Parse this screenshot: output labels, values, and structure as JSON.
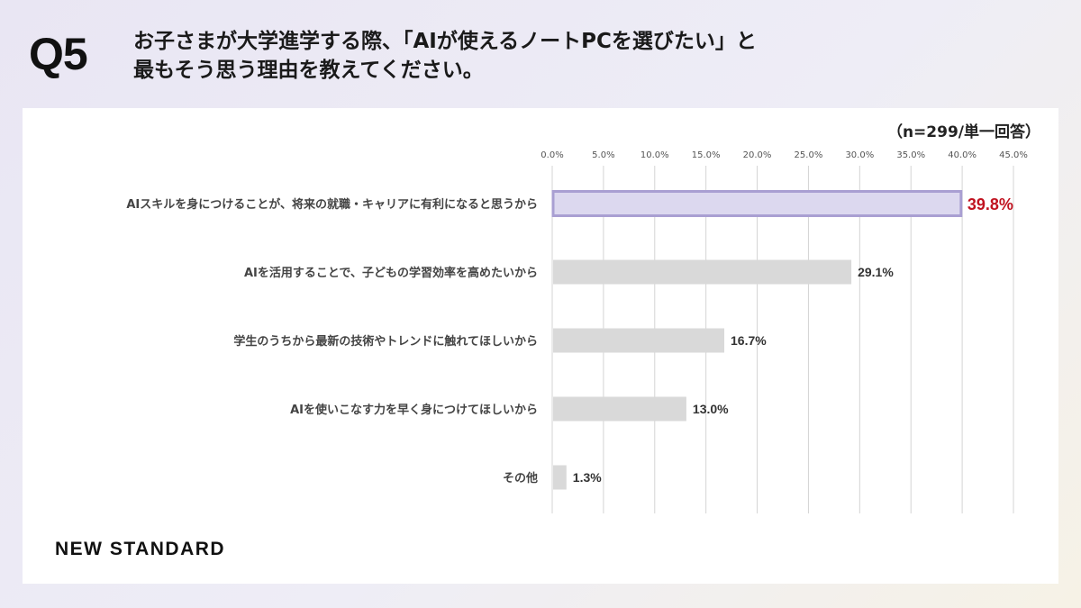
{
  "question": {
    "number": "Q5",
    "title_line1": "お子さまが大学進学する際、「AIが使えるノートPCを選びたい」と",
    "title_line2": "最もそう思う理由を教えてください。"
  },
  "sample_note": "（n=299/単一回答）",
  "brand": "NEW STANDARD",
  "colors": {
    "highlight_fill": "#dcd8ef",
    "highlight_stroke": "#a99fd2",
    "bar_fill": "#d9d9d9",
    "highlight_label": "#c0121f",
    "grid": "#d4d4d4"
  },
  "chart_data": {
    "type": "bar",
    "orientation": "horizontal",
    "categories": [
      "AIスキルを身につけることが、将来の就職・キャリアに有利になると思うから",
      "AIを活用することで、子どもの学習効率を高めたいから",
      "学生のうちから最新の技術やトレンドに触れてほしいから",
      "AIを使いこなす力を早く身につけてほしいから",
      "その他"
    ],
    "values": [
      39.8,
      29.1,
      16.7,
      13.0,
      1.3
    ],
    "value_labels": [
      "39.8%",
      "29.1%",
      "16.7%",
      "13.0%",
      "1.3%"
    ],
    "x_ticks": [
      "0.0%",
      "5.0%",
      "10.0%",
      "15.0%",
      "20.0%",
      "25.0%",
      "30.0%",
      "35.0%",
      "40.0%",
      "45.0%"
    ],
    "xlim": [
      0,
      45
    ],
    "highlight_index": 0,
    "grid": true
  }
}
